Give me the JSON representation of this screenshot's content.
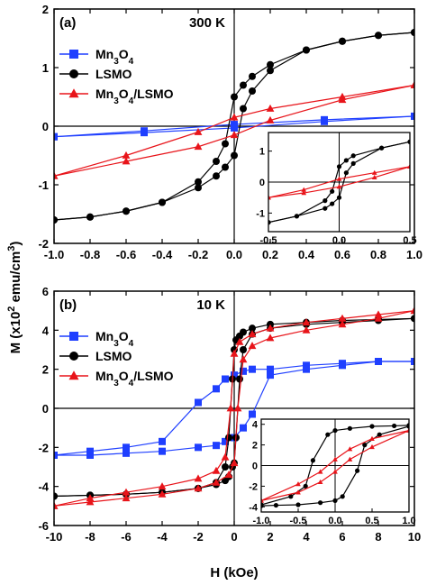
{
  "figure": {
    "ylabel": "M (x10² emu/cm³)",
    "xlabel": "H (kOe)"
  },
  "chart_data": [
    {
      "type": "line",
      "panel_label": "(a)",
      "annotation": "300 K",
      "xlim": [
        -1.0,
        1.0
      ],
      "ylim": [
        -2,
        2
      ],
      "xticks": [
        "-1.0",
        "-0.8",
        "-0.6",
        "-0.4",
        "-0.2",
        "0.0",
        "0.2",
        "0.4",
        "0.6",
        "0.8",
        "1.0"
      ],
      "yticks": [
        "-2",
        "-1",
        "0",
        "1",
        "2"
      ],
      "legend_position": "top-left",
      "series": [
        {
          "name": "Mn3O4",
          "marker": "square",
          "color": "#1f3fff",
          "upper": {
            "x": [
              -1.0,
              -0.5,
              0.0,
              0.5,
              1.0
            ],
            "y": [
              -0.18,
              -0.08,
              0.03,
              0.11,
              0.17
            ]
          },
          "lower": {
            "x": [
              -1.0,
              -0.5,
              0.0,
              0.5,
              1.0
            ],
            "y": [
              -0.18,
              -0.11,
              -0.03,
              0.08,
              0.17
            ]
          }
        },
        {
          "name": "LSMO",
          "marker": "circle",
          "color": "#000000",
          "upper": {
            "x": [
              -1.0,
              -0.8,
              -0.6,
              -0.4,
              -0.2,
              -0.1,
              -0.05,
              0.0,
              0.05,
              0.1,
              0.2,
              0.4,
              0.6,
              0.8,
              1.0
            ],
            "y": [
              -1.6,
              -1.55,
              -1.45,
              -1.3,
              -0.95,
              -0.6,
              -0.3,
              0.5,
              0.7,
              0.85,
              1.05,
              1.3,
              1.45,
              1.55,
              1.6
            ]
          },
          "lower": {
            "x": [
              -1.0,
              -0.8,
              -0.6,
              -0.4,
              -0.2,
              -0.1,
              -0.05,
              0.0,
              0.05,
              0.1,
              0.2,
              0.4,
              0.6,
              0.8,
              1.0
            ],
            "y": [
              -1.6,
              -1.55,
              -1.45,
              -1.3,
              -1.05,
              -0.85,
              -0.7,
              -0.5,
              0.3,
              0.6,
              0.95,
              1.3,
              1.45,
              1.55,
              1.6
            ]
          }
        },
        {
          "name": "Mn3O4/LSMO",
          "marker": "triangle",
          "color": "#e8141a",
          "upper": {
            "x": [
              -1.0,
              -0.6,
              -0.2,
              0.0,
              0.2,
              0.6,
              1.0
            ],
            "y": [
              -0.85,
              -0.5,
              -0.1,
              0.15,
              0.3,
              0.5,
              0.7
            ]
          },
          "lower": {
            "x": [
              -1.0,
              -0.6,
              -0.2,
              0.0,
              0.2,
              0.6,
              1.0
            ],
            "y": [
              -0.85,
              -0.6,
              -0.35,
              -0.15,
              0.1,
              0.45,
              0.7
            ]
          }
        }
      ],
      "inset": {
        "xlim": [
          -0.5,
          0.5
        ],
        "ylim": [
          -1.6,
          1.6
        ],
        "xticks": [
          "-0.5",
          "0.0",
          "0.5"
        ],
        "yticks": [
          "-1",
          "0",
          "1"
        ],
        "series": [
          {
            "color": "#000000",
            "marker": "circle",
            "upper": {
              "x": [
                -0.5,
                -0.3,
                -0.1,
                -0.05,
                0.0,
                0.05,
                0.1,
                0.3,
                0.5
              ],
              "y": [
                -1.3,
                -1.1,
                -0.6,
                -0.3,
                0.5,
                0.7,
                0.85,
                1.1,
                1.3
              ]
            },
            "lower": {
              "x": [
                -0.5,
                -0.3,
                -0.1,
                -0.05,
                0.0,
                0.05,
                0.1,
                0.3,
                0.5
              ],
              "y": [
                -1.3,
                -1.1,
                -0.85,
                -0.7,
                -0.5,
                0.3,
                0.6,
                1.1,
                1.3
              ]
            }
          },
          {
            "color": "#e8141a",
            "marker": "triangle",
            "upper": {
              "x": [
                -0.5,
                -0.25,
                0.0,
                0.25,
                0.5
              ],
              "y": [
                -0.5,
                -0.25,
                0.1,
                0.3,
                0.5
              ]
            },
            "lower": {
              "x": [
                -0.5,
                -0.25,
                0.0,
                0.25,
                0.5
              ],
              "y": [
                -0.5,
                -0.35,
                -0.15,
                0.15,
                0.5
              ]
            }
          }
        ]
      }
    },
    {
      "type": "line",
      "panel_label": "(b)",
      "annotation": "10 K",
      "xlim": [
        -10,
        10
      ],
      "ylim": [
        -6,
        6
      ],
      "xticks": [
        "-10",
        "-8",
        "-6",
        "-4",
        "-2",
        "0",
        "2",
        "4",
        "6",
        "8",
        "10"
      ],
      "yticks": [
        "-6",
        "-4",
        "-2",
        "0",
        "2",
        "4",
        "6"
      ],
      "legend_position": "top-left",
      "series": [
        {
          "name": "Mn3O4",
          "marker": "square",
          "color": "#1f3fff",
          "upper": {
            "x": [
              -10,
              -8,
              -6,
              -4,
              -2,
              -1,
              -0.5,
              0,
              0.5,
              1,
              2,
              4,
              6,
              8,
              10
            ],
            "y": [
              -2.4,
              -2.2,
              -2.0,
              -1.7,
              0.3,
              1.0,
              1.5,
              1.7,
              1.9,
              2.0,
              2.0,
              2.2,
              2.3,
              2.4,
              2.4
            ]
          },
          "lower": {
            "x": [
              -10,
              -8,
              -6,
              -4,
              -2,
              -1,
              -0.5,
              0,
              0.5,
              1,
              2,
              4,
              6,
              8,
              10
            ],
            "y": [
              -2.4,
              -2.4,
              -2.3,
              -2.2,
              -2.0,
              -1.9,
              -1.7,
              -1.5,
              -1.0,
              -0.3,
              1.7,
              2.0,
              2.2,
              2.4,
              2.4
            ]
          }
        },
        {
          "name": "LSMO",
          "marker": "circle",
          "color": "#000000",
          "upper": {
            "x": [
              -10,
              -8,
              -6,
              -4,
              -2,
              -1,
              -0.5,
              -0.3,
              -0.1,
              0,
              0.1,
              0.3,
              0.5,
              1,
              2,
              4,
              6,
              8,
              10
            ],
            "y": [
              -4.5,
              -4.45,
              -4.4,
              -4.3,
              -4.1,
              -3.8,
              -3.0,
              -1.5,
              1.5,
              3.0,
              3.5,
              3.7,
              3.9,
              4.1,
              4.3,
              4.4,
              4.5,
              4.55,
              4.6
            ]
          },
          "lower": {
            "x": [
              -10,
              -8,
              -6,
              -4,
              -2,
              -1,
              -0.5,
              -0.3,
              -0.1,
              0,
              0.1,
              0.3,
              0.5,
              1,
              2,
              4,
              6,
              8,
              10
            ],
            "y": [
              -4.5,
              -4.45,
              -4.4,
              -4.3,
              -4.1,
              -3.9,
              -3.7,
              -3.5,
              -3.0,
              -2.8,
              -1.5,
              1.5,
              3.0,
              3.8,
              4.1,
              4.3,
              4.4,
              4.5,
              4.6
            ]
          }
        },
        {
          "name": "Mn3O4/LSMO",
          "marker": "triangle",
          "color": "#e8141a",
          "upper": {
            "x": [
              -10,
              -8,
              -6,
              -4,
              -2,
              -1,
              -0.5,
              -0.2,
              0,
              0.3,
              1,
              2,
              4,
              6,
              8,
              10
            ],
            "y": [
              -5.0,
              -4.6,
              -4.3,
              -4.0,
              -3.6,
              -3.2,
              -2.5,
              0,
              2.8,
              3.4,
              3.8,
              4.1,
              4.4,
              4.6,
              4.8,
              5.0
            ]
          },
          "lower": {
            "x": [
              -10,
              -8,
              -6,
              -4,
              -2,
              -1,
              -0.3,
              0,
              0.2,
              0.5,
              1,
              2,
              4,
              6,
              8,
              10
            ],
            "y": [
              -5.0,
              -4.8,
              -4.6,
              -4.4,
              -4.1,
              -3.8,
              -3.4,
              -2.8,
              0,
              2.5,
              3.2,
              3.6,
              4.0,
              4.3,
              4.6,
              5.0
            ]
          }
        }
      ],
      "inset": {
        "xlim": [
          -1.0,
          1.0
        ],
        "ylim": [
          -4.5,
          4.5
        ],
        "xticks": [
          "-1.0",
          "-0.5",
          "0.0",
          "0.5",
          "1.0"
        ],
        "yticks": [
          "-4",
          "-2",
          "0",
          "2",
          "4"
        ],
        "series": [
          {
            "color": "#000000",
            "marker": "circle",
            "upper": {
              "x": [
                -1.0,
                -0.6,
                -0.4,
                -0.3,
                -0.1,
                0.0,
                0.2,
                0.5,
                0.8,
                1.0
              ],
              "y": [
                -3.8,
                -3.0,
                -2.0,
                0.5,
                3.0,
                3.4,
                3.6,
                3.8,
                3.85,
                3.9
              ]
            },
            "lower": {
              "x": [
                -1.0,
                -0.8,
                -0.5,
                -0.2,
                0.0,
                0.1,
                0.3,
                0.4,
                0.6,
                1.0
              ],
              "y": [
                -3.9,
                -3.85,
                -3.8,
                -3.6,
                -3.4,
                -3.0,
                -0.5,
                2.0,
                3.0,
                3.8
              ]
            }
          },
          {
            "color": "#e8141a",
            "marker": "triangle",
            "upper": {
              "x": [
                -1.0,
                -0.5,
                -0.2,
                0.0,
                0.2,
                0.5,
                1.0
              ],
              "y": [
                -3.4,
                -1.8,
                -0.6,
                0.6,
                1.6,
                2.6,
                3.4
              ]
            },
            "lower": {
              "x": [
                -1.0,
                -0.5,
                -0.2,
                0.0,
                0.2,
                0.5,
                1.0
              ],
              "y": [
                -3.4,
                -2.6,
                -1.6,
                -0.6,
                0.6,
                1.8,
                3.4
              ]
            }
          }
        ]
      }
    }
  ]
}
